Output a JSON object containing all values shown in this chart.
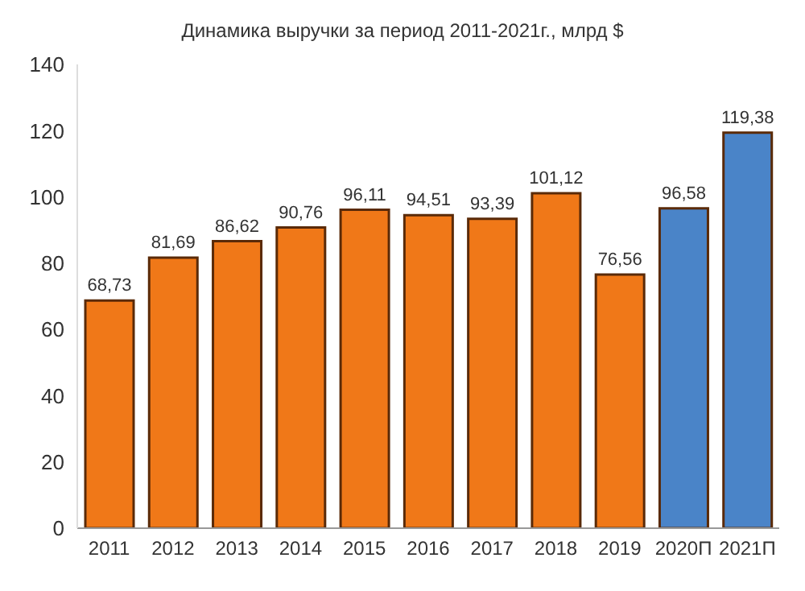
{
  "chart_data": {
    "type": "bar",
    "title": "Динамика выручки за период 2011-2021г.,  млрд $",
    "categories": [
      "2011",
      "2012",
      "2013",
      "2014",
      "2015",
      "2016",
      "2017",
      "2018",
      "2019",
      "2020П",
      "2021П"
    ],
    "values": [
      68.73,
      81.69,
      86.62,
      90.76,
      96.11,
      94.51,
      93.39,
      101.12,
      76.56,
      96.58,
      119.38
    ],
    "colors": [
      "#f07818",
      "#f07818",
      "#f07818",
      "#f07818",
      "#f07818",
      "#f07818",
      "#f07818",
      "#f07818",
      "#f07818",
      "#4a84c8",
      "#4a84c8"
    ],
    "value_labels": [
      "68,73",
      "81,69",
      "86,62",
      "90,76",
      "96,11",
      "94,51",
      "93,39",
      "101,12",
      "76,56",
      "96,58",
      "119,38"
    ],
    "ylim": [
      0,
      140
    ],
    "yticks": [
      0,
      20,
      40,
      60,
      80,
      100,
      120,
      140
    ],
    "grid": false
  }
}
